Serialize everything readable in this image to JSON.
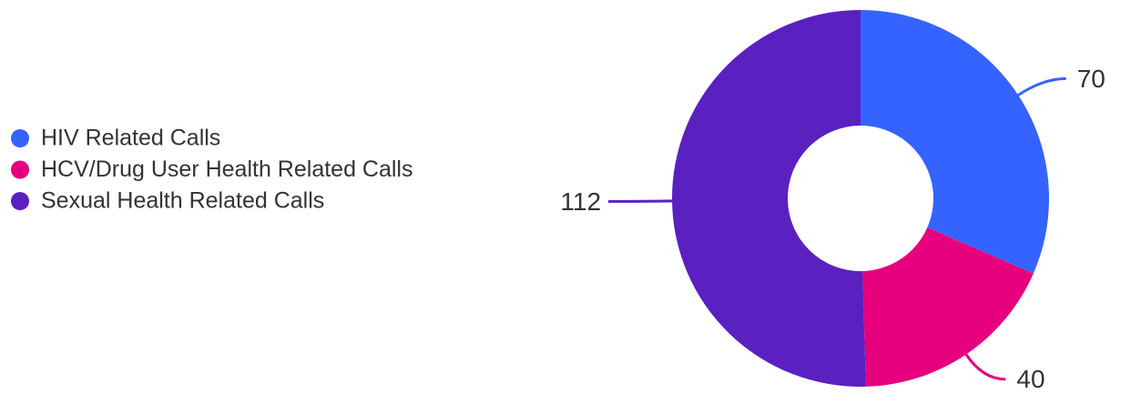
{
  "chart_data": {
    "type": "donut",
    "categories": [
      "HIV Related Calls",
      "HCV/Drug User Health Related Calls",
      "Sexual Health Related Calls"
    ],
    "values": [
      70,
      40,
      112
    ],
    "colors": [
      "#3563ff",
      "#e6007e",
      "#5a20c0"
    ],
    "legend": "left"
  }
}
